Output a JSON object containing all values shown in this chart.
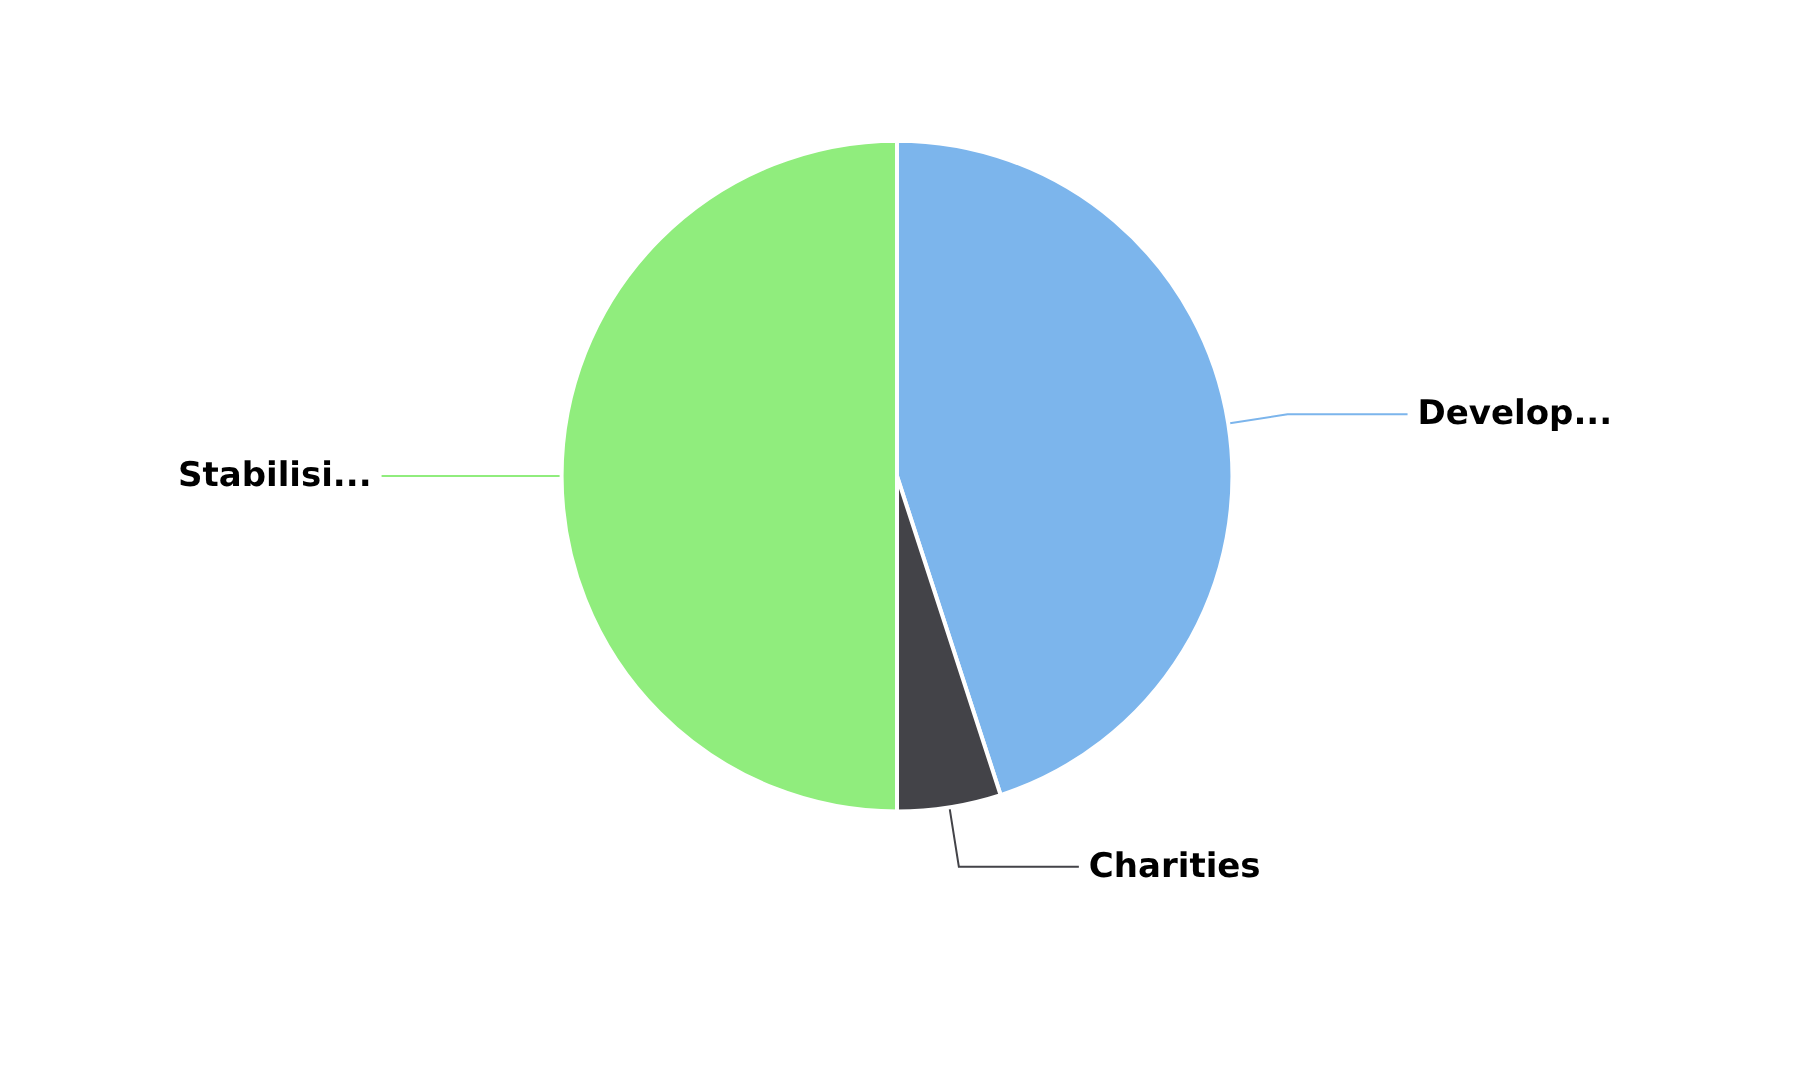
{
  "chart_data": {
    "type": "pie",
    "categories": [
      "Develop...",
      "Charities",
      "Stabilisi..."
    ],
    "values": [
      45,
      5,
      50
    ],
    "colors": [
      "#7cb5ec",
      "#434348",
      "#90ed7d"
    ],
    "legend": false
  }
}
